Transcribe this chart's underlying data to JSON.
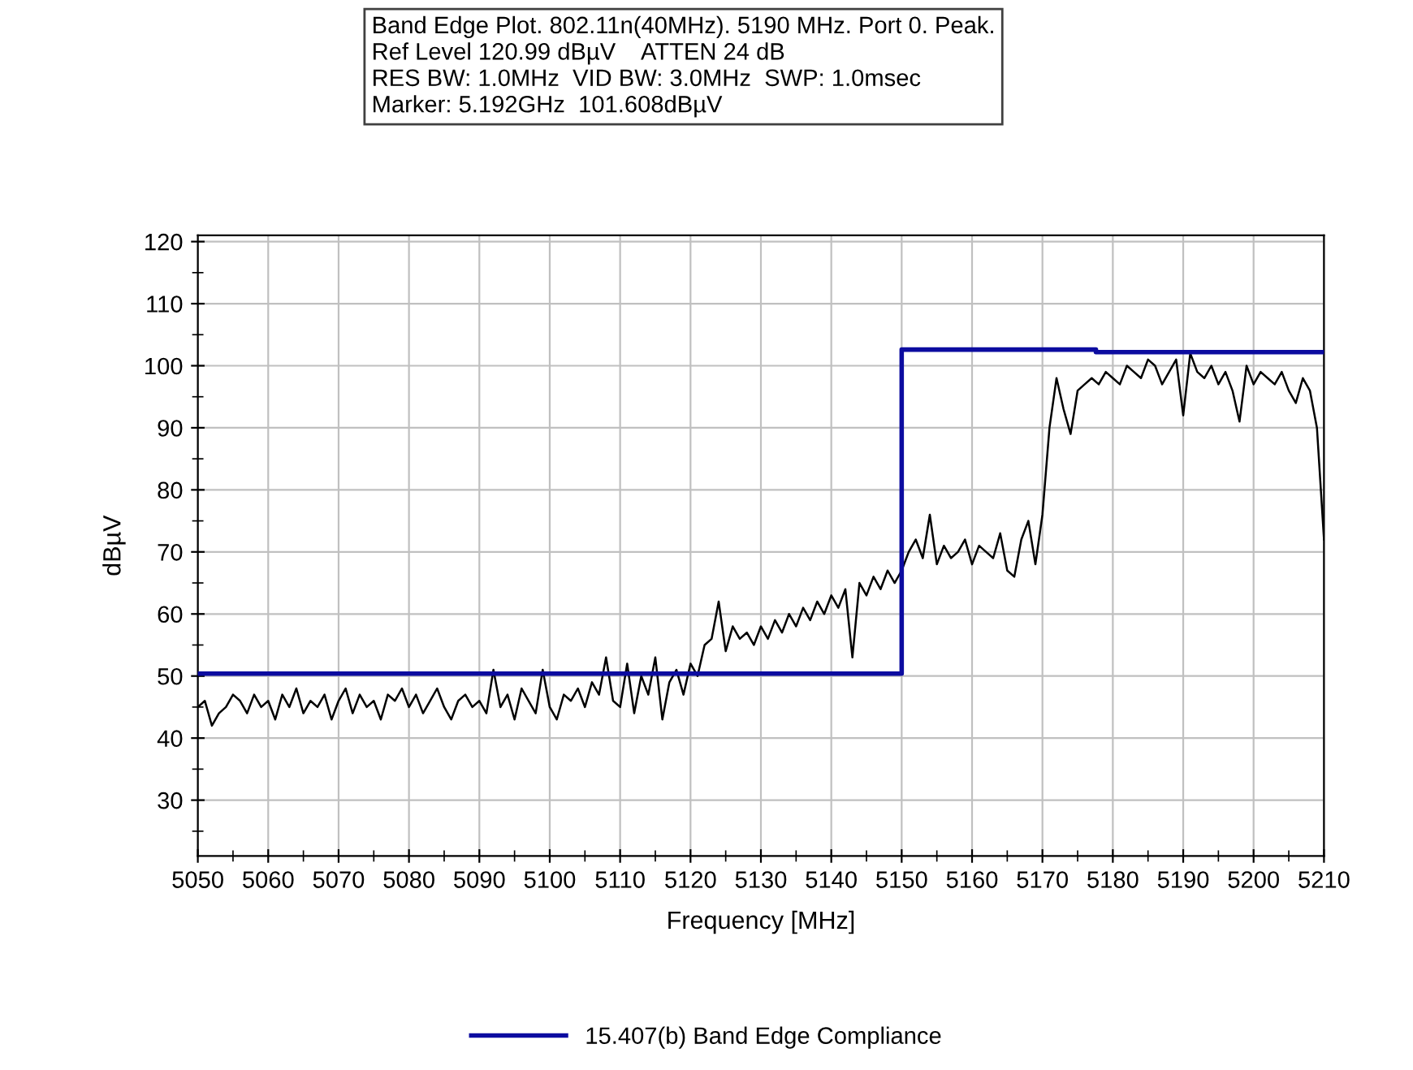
{
  "chart_data": {
    "type": "line",
    "title": "Band Edge Plot. 802.11n(40MHz). 5190 MHz. Port 0. Peak.\nRef Level 120.99 dBµV    ATTEN 24 dB\nRES BW: 1.0MHz  VID BW: 3.0MHz  SWP: 1.0msec\nMarker: 5.192GHz  101.608dBµV",
    "xlabel": "Frequency [MHz]",
    "ylabel": "dBµV",
    "xlim": [
      5050,
      5210
    ],
    "ylim": [
      21,
      121
    ],
    "xticks": [
      5050,
      5060,
      5070,
      5080,
      5090,
      5100,
      5110,
      5120,
      5130,
      5140,
      5150,
      5160,
      5170,
      5180,
      5190,
      5200,
      5210
    ],
    "yticks": [
      30,
      40,
      50,
      60,
      70,
      80,
      90,
      100,
      110,
      120
    ],
    "grid": true,
    "legend": "bottom",
    "marker": "none",
    "line_style": "solid",
    "series": [
      {
        "color": "#000000",
        "x": [
          5050,
          5051,
          5052,
          5053,
          5054,
          5055,
          5056,
          5057,
          5058,
          5059,
          5060,
          5061,
          5062,
          5063,
          5064,
          5065,
          5066,
          5067,
          5068,
          5069,
          5070,
          5071,
          5072,
          5073,
          5074,
          5075,
          5076,
          5077,
          5078,
          5079,
          5080,
          5081,
          5082,
          5083,
          5084,
          5085,
          5086,
          5087,
          5088,
          5089,
          5090,
          5091,
          5092,
          5093,
          5094,
          5095,
          5096,
          5097,
          5098,
          5099,
          5100,
          5101,
          5102,
          5103,
          5104,
          5105,
          5106,
          5107,
          5108,
          5109,
          5110,
          5111,
          5112,
          5113,
          5114,
          5115,
          5116,
          5117,
          5118,
          5119,
          5120,
          5121,
          5122,
          5123,
          5124,
          5125,
          5126,
          5127,
          5128,
          5129,
          5130,
          5131,
          5132,
          5133,
          5134,
          5135,
          5136,
          5137,
          5138,
          5139,
          5140,
          5141,
          5142,
          5143,
          5144,
          5145,
          5146,
          5147,
          5148,
          5149,
          5150,
          5151,
          5152,
          5153,
          5154,
          5155,
          5156,
          5157,
          5158,
          5159,
          5160,
          5161,
          5162,
          5163,
          5164,
          5165,
          5166,
          5167,
          5168,
          5169,
          5170,
          5171,
          5172,
          5173,
          5174,
          5175,
          5176,
          5177,
          5178,
          5179,
          5180,
          5181,
          5182,
          5183,
          5184,
          5185,
          5186,
          5187,
          5188,
          5189,
          5190,
          5191,
          5192,
          5193,
          5194,
          5195,
          5196,
          5197,
          5198,
          5199,
          5200,
          5201,
          5202,
          5203,
          5204,
          5205,
          5206,
          5207,
          5208,
          5209,
          5210
        ],
        "values": [
          45,
          46,
          42,
          44,
          45,
          47,
          46,
          44,
          47,
          45,
          46,
          43,
          47,
          45,
          48,
          44,
          46,
          45,
          47,
          43,
          46,
          48,
          44,
          47,
          45,
          46,
          43,
          47,
          46,
          48,
          45,
          47,
          44,
          46,
          48,
          45,
          43,
          46,
          47,
          45,
          46,
          44,
          51,
          45,
          47,
          43,
          48,
          46,
          44,
          51,
          45,
          43,
          47,
          46,
          48,
          45,
          49,
          47,
          53,
          46,
          45,
          52,
          44,
          50,
          47,
          53,
          43,
          49,
          51,
          47,
          52,
          50,
          55,
          56,
          62,
          54,
          58,
          56,
          57,
          55,
          58,
          56,
          59,
          57,
          60,
          58,
          61,
          59,
          62,
          60,
          63,
          61,
          64,
          53,
          65,
          63,
          66,
          64,
          67,
          65,
          67,
          70,
          72,
          69,
          76,
          68,
          71,
          69,
          70,
          72,
          68,
          71,
          70,
          69,
          73,
          67,
          66,
          72,
          75,
          68,
          76,
          90,
          98,
          93,
          89,
          96,
          97,
          98,
          97,
          99,
          98,
          97,
          100,
          99,
          98,
          101,
          100,
          97,
          99,
          101,
          92,
          102,
          99,
          98,
          100,
          97,
          99,
          96,
          91,
          100,
          97,
          99,
          98,
          97,
          99,
          96,
          94,
          98,
          96,
          90,
          72
        ]
      },
      {
        "name": "15.407(b) Band Edge Compliance",
        "color": "#0c0ca0",
        "x": [
          5050,
          5150,
          5150,
          5177.6,
          5177.6,
          5210
        ],
        "values": [
          50.4,
          50.4,
          102.6,
          102.6,
          102.2,
          102.2
        ]
      }
    ]
  }
}
